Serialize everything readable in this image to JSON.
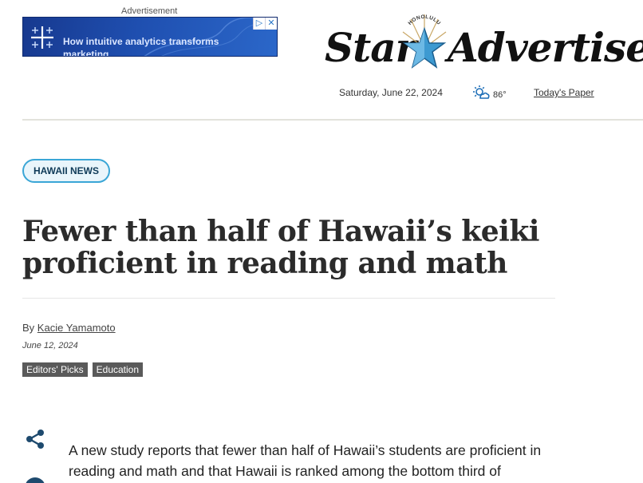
{
  "ad": {
    "label": "Advertisement",
    "text": "How intuitive analytics transforms marketing",
    "controls": [
      "▷",
      "✕"
    ]
  },
  "masthead": {
    "word1": "Star",
    "word2": "Advertiser",
    "star_banner": "HONOLULU",
    "date": "Saturday, June 22, 2024",
    "temperature": "86°",
    "todays_paper": "Today's Paper"
  },
  "article": {
    "section": "HAWAII NEWS",
    "headline": "Fewer than half of Hawaii’s keiki proficient in reading and math",
    "byline_prefix": "By",
    "author": "Kacie Yamamoto",
    "date": "June 12, 2024",
    "tags": [
      "Editors' Picks",
      "Education"
    ],
    "body_first": "A new study reports that fewer than half of Hawaii’s students are proficient in reading and math and that Hawaii is ranked among the bottom third of"
  },
  "colors": {
    "accent": "#3aa6d6",
    "share": "#1e4a6e",
    "tag_bg": "#5a5a5a"
  },
  "icons": {
    "ad": "tableau-cross-icon",
    "weather": "partly-sunny-icon",
    "share": "share-icon",
    "star": "star-icon"
  }
}
